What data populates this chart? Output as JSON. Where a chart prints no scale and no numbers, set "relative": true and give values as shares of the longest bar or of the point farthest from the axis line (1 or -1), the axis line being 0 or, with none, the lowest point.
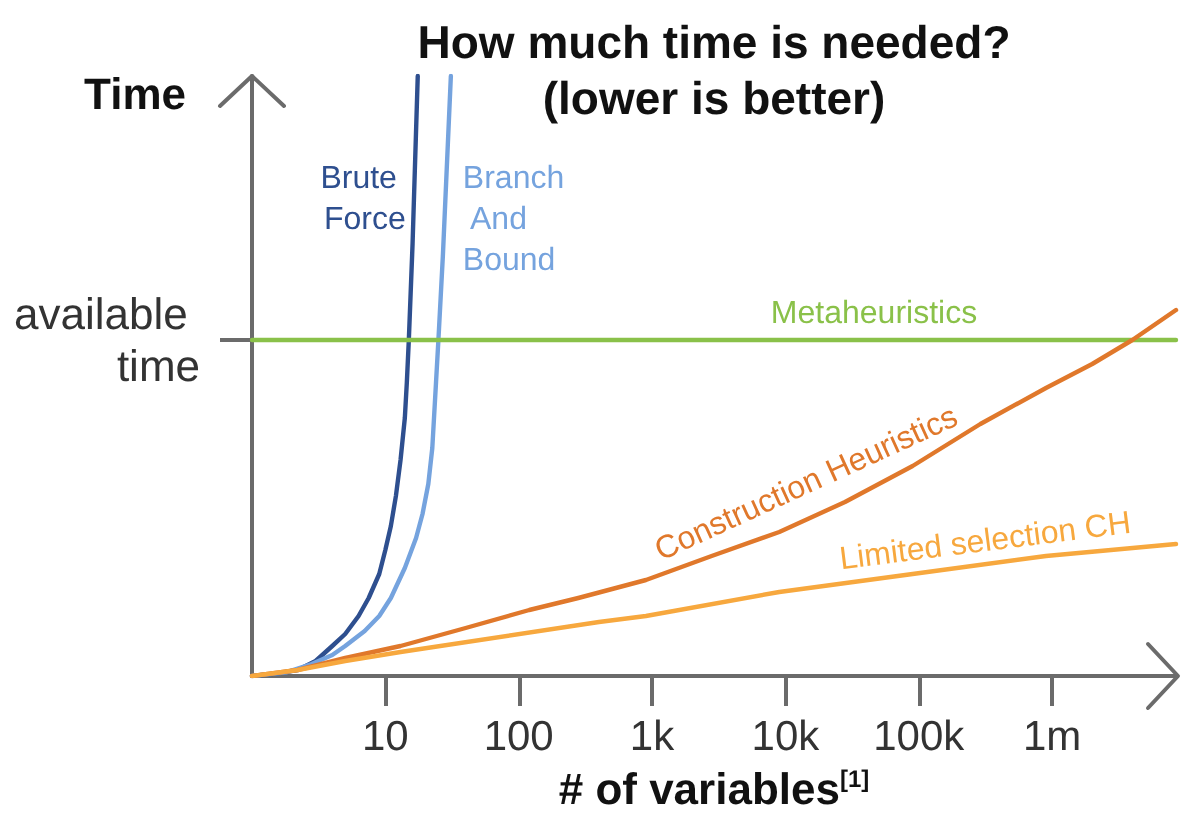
{
  "chart_data": {
    "type": "line",
    "title": "How much time is needed?",
    "subtitle": "(lower is better)",
    "xlabel": "# of variables$^{[1]}$",
    "ylabel": "Time",
    "relative": true,
    "log": "x",
    "tick_labels": "x",
    "marker": "none",
    "line_style": "solid",
    "xlim": [
      1,
      8500000
    ],
    "xticks": [
      10,
      100,
      {
        "value": 1000,
        "label": "1k"
      },
      {
        "value": 10000,
        "label": "10k"
      },
      {
        "value": 100000,
        "label": "100k"
      },
      {
        "value": 1000000,
        "label": "1m"
      }
    ],
    "annotations": [
      {
        "text": "available time",
        "x": 1,
        "y": 0.56
      }
    ],
    "series": [
      {
        "name": "Brute Force",
        "color": "#2e4f8f",
        "x": [
          1,
          1.5,
          2.2,
          3,
          4,
          5,
          6.3,
          7.5,
          9,
          10,
          11,
          12,
          13,
          14,
          14.5,
          15,
          16,
          17.5
        ],
        "values": [
          0,
          0.004,
          0.01,
          0.025,
          0.05,
          0.07,
          0.1,
          0.13,
          0.17,
          0.21,
          0.25,
          0.3,
          0.36,
          0.43,
          0.49,
          0.56,
          0.72,
          1
        ]
      },
      {
        "name": "Branch And Bound",
        "color": "#75a3de",
        "x": [
          1,
          1.8,
          2.8,
          4,
          5,
          7,
          9,
          11,
          14,
          17,
          19,
          21,
          22.5,
          24,
          25,
          27,
          31
        ],
        "values": [
          0,
          0.006,
          0.02,
          0.035,
          0.05,
          0.075,
          0.1,
          0.13,
          0.18,
          0.23,
          0.27,
          0.32,
          0.38,
          0.49,
          0.56,
          0.7,
          1
        ]
      },
      {
        "name": "Metaheuristics",
        "color": "#8ac149",
        "x": [
          1,
          8500000
        ],
        "values": [
          0.56,
          0.56
        ]
      },
      {
        "name": "Construction Heuristics",
        "color": "#e0782b",
        "x": [
          1,
          2.2,
          5,
          13,
          40,
          120,
          280,
          900,
          2800,
          9000,
          28000,
          90000,
          290000,
          900000,
          2000000,
          4000000,
          8500000
        ],
        "values": [
          0,
          0.01,
          0.03,
          0.05,
          0.08,
          0.11,
          0.13,
          0.16,
          0.2,
          0.24,
          0.29,
          0.35,
          0.42,
          0.48,
          0.52,
          0.56,
          0.61
        ]
      },
      {
        "name": "Limited selection CH",
        "color": "#f7a83e",
        "x": [
          1,
          2.2,
          5,
          13,
          400,
          900,
          9000,
          90000,
          900000,
          8500000
        ],
        "values": [
          0,
          0.01,
          0.025,
          0.04,
          0.09,
          0.1,
          0.14,
          0.17,
          0.2,
          0.22
        ]
      }
    ]
  }
}
